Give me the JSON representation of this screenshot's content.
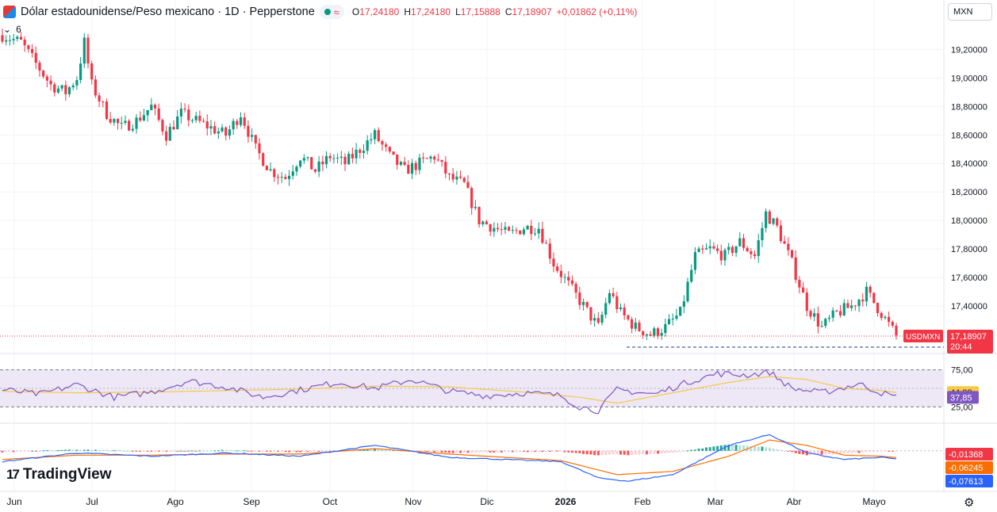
{
  "header": {
    "title": "Dólar estadounidense/Peso mexicano · 1D · Pepperstone",
    "ohlc": {
      "o_label": "O",
      "o": "17,24180",
      "h_label": "H",
      "h": "17,24180",
      "l_label": "L",
      "l": "17,15888",
      "c_label": "C",
      "c": "17,18907",
      "change": "+0,01862 (+0,11%)"
    },
    "collapse_count": "6"
  },
  "currency": "MXN",
  "logo_text": "TradingView",
  "colors": {
    "up": "#089981",
    "down": "#f23645",
    "rsi_line": "#7e57c2",
    "rsi_ma": "#f7c948",
    "macd_line": "#2962ff",
    "signal_line": "#ff6d00",
    "rsi_band": "#ede7f6"
  },
  "chart_data": {
    "type": "candlestick",
    "symbol": "USDMXN",
    "price_axis": {
      "ticks": [
        "19,20000",
        "19,00000",
        "18,80000",
        "18,60000",
        "18,40000",
        "18,20000",
        "18,00000",
        "17,80000",
        "17,60000",
        "17,40000"
      ],
      "range": [
        17.1,
        19.38
      ]
    },
    "last_price": {
      "label": "USDMXN",
      "price": "17,18907",
      "countdown": "20:44"
    },
    "x_axis": {
      "labels": [
        "Jun",
        "Jul",
        "Ago",
        "Sep",
        "Oct",
        "Nov",
        "Dic",
        "2026",
        "Feb",
        "Mar",
        "Abr",
        "Mayo"
      ]
    },
    "price_path": [
      [
        0,
        19.3
      ],
      [
        5,
        19.25
      ],
      [
        9,
        19.1
      ],
      [
        13,
        18.95
      ],
      [
        17,
        18.9
      ],
      [
        20,
        19.0
      ],
      [
        22,
        19.25
      ],
      [
        24,
        18.95
      ],
      [
        28,
        18.75
      ],
      [
        32,
        18.65
      ],
      [
        36,
        18.7
      ],
      [
        40,
        18.8
      ],
      [
        44,
        18.6
      ],
      [
        48,
        18.75
      ],
      [
        52,
        18.7
      ],
      [
        56,
        18.65
      ],
      [
        60,
        18.6
      ],
      [
        64,
        18.75
      ],
      [
        68,
        18.5
      ],
      [
        72,
        18.35
      ],
      [
        76,
        18.3
      ],
      [
        80,
        18.45
      ],
      [
        84,
        18.35
      ],
      [
        88,
        18.45
      ],
      [
        92,
        18.4
      ],
      [
        96,
        18.5
      ],
      [
        100,
        18.6
      ],
      [
        104,
        18.45
      ],
      [
        108,
        18.35
      ],
      [
        112,
        18.4
      ],
      [
        116,
        18.45
      ],
      [
        120,
        18.3
      ],
      [
        124,
        18.25
      ],
      [
        128,
        18.0
      ],
      [
        132,
        17.95
      ],
      [
        136,
        17.9
      ],
      [
        140,
        17.95
      ],
      [
        144,
        17.95
      ],
      [
        148,
        17.7
      ],
      [
        152,
        17.55
      ],
      [
        156,
        17.4
      ],
      [
        160,
        17.25
      ],
      [
        163,
        17.5
      ],
      [
        166,
        17.35
      ],
      [
        170,
        17.25
      ],
      [
        174,
        17.2
      ],
      [
        178,
        17.25
      ],
      [
        182,
        17.35
      ],
      [
        186,
        17.75
      ],
      [
        190,
        17.8
      ],
      [
        194,
        17.75
      ],
      [
        198,
        17.85
      ],
      [
        202,
        17.75
      ],
      [
        205,
        18.05
      ],
      [
        208,
        17.95
      ],
      [
        212,
        17.7
      ],
      [
        216,
        17.4
      ],
      [
        220,
        17.25
      ],
      [
        224,
        17.35
      ],
      [
        228,
        17.4
      ],
      [
        232,
        17.5
      ],
      [
        236,
        17.35
      ],
      [
        240,
        17.18907
      ]
    ],
    "rsi": {
      "ticks": [
        "75,00",
        "25,00"
      ],
      "value": "37,85",
      "ma_value": "44,38",
      "rsi_path": [
        [
          0,
          48
        ],
        [
          10,
          42
        ],
        [
          20,
          55
        ],
        [
          30,
          38
        ],
        [
          40,
          45
        ],
        [
          50,
          60
        ],
        [
          60,
          52
        ],
        [
          70,
          38
        ],
        [
          80,
          48
        ],
        [
          90,
          58
        ],
        [
          100,
          50
        ],
        [
          110,
          62
        ],
        [
          120,
          46
        ],
        [
          130,
          40
        ],
        [
          140,
          44
        ],
        [
          150,
          40
        ],
        [
          155,
          25
        ],
        [
          160,
          20
        ],
        [
          165,
          48
        ],
        [
          175,
          42
        ],
        [
          185,
          60
        ],
        [
          192,
          70
        ],
        [
          200,
          68
        ],
        [
          206,
          72
        ],
        [
          212,
          50
        ],
        [
          220,
          44
        ],
        [
          230,
          56
        ],
        [
          236,
          44
        ],
        [
          240,
          37.85
        ]
      ],
      "ma_path": [
        [
          0,
          46
        ],
        [
          20,
          44
        ],
        [
          40,
          45
        ],
        [
          60,
          47
        ],
        [
          80,
          49
        ],
        [
          100,
          53
        ],
        [
          120,
          52
        ],
        [
          140,
          45
        ],
        [
          155,
          38
        ],
        [
          165,
          30
        ],
        [
          180,
          44
        ],
        [
          195,
          58
        ],
        [
          206,
          66
        ],
        [
          216,
          62
        ],
        [
          226,
          50
        ],
        [
          236,
          47
        ],
        [
          240,
          44.38
        ]
      ]
    },
    "macd": {
      "histogram_value": "-0,01368",
      "signal_value": "-0,06245",
      "macd_value": "-0,07613",
      "macd_path": [
        [
          0,
          -0.1
        ],
        [
          20,
          -0.02
        ],
        [
          40,
          -0.05
        ],
        [
          60,
          -0.02
        ],
        [
          80,
          -0.05
        ],
        [
          100,
          0.05
        ],
        [
          120,
          -0.06
        ],
        [
          135,
          -0.08
        ],
        [
          150,
          -0.1
        ],
        [
          160,
          -0.25
        ],
        [
          168,
          -0.28
        ],
        [
          180,
          -0.22
        ],
        [
          195,
          0.05
        ],
        [
          206,
          0.15
        ],
        [
          216,
          -0.02
        ],
        [
          226,
          -0.08
        ],
        [
          236,
          -0.06
        ],
        [
          240,
          -0.07613
        ]
      ],
      "signal_path": [
        [
          0,
          -0.08
        ],
        [
          20,
          -0.04
        ],
        [
          40,
          -0.04
        ],
        [
          60,
          -0.03
        ],
        [
          80,
          -0.03
        ],
        [
          100,
          0.02
        ],
        [
          120,
          -0.03
        ],
        [
          135,
          -0.06
        ],
        [
          150,
          -0.09
        ],
        [
          165,
          -0.22
        ],
        [
          180,
          -0.19
        ],
        [
          195,
          -0.05
        ],
        [
          206,
          0.1
        ],
        [
          216,
          0.05
        ],
        [
          226,
          -0.04
        ],
        [
          236,
          -0.05
        ],
        [
          240,
          -0.06245
        ]
      ]
    }
  }
}
